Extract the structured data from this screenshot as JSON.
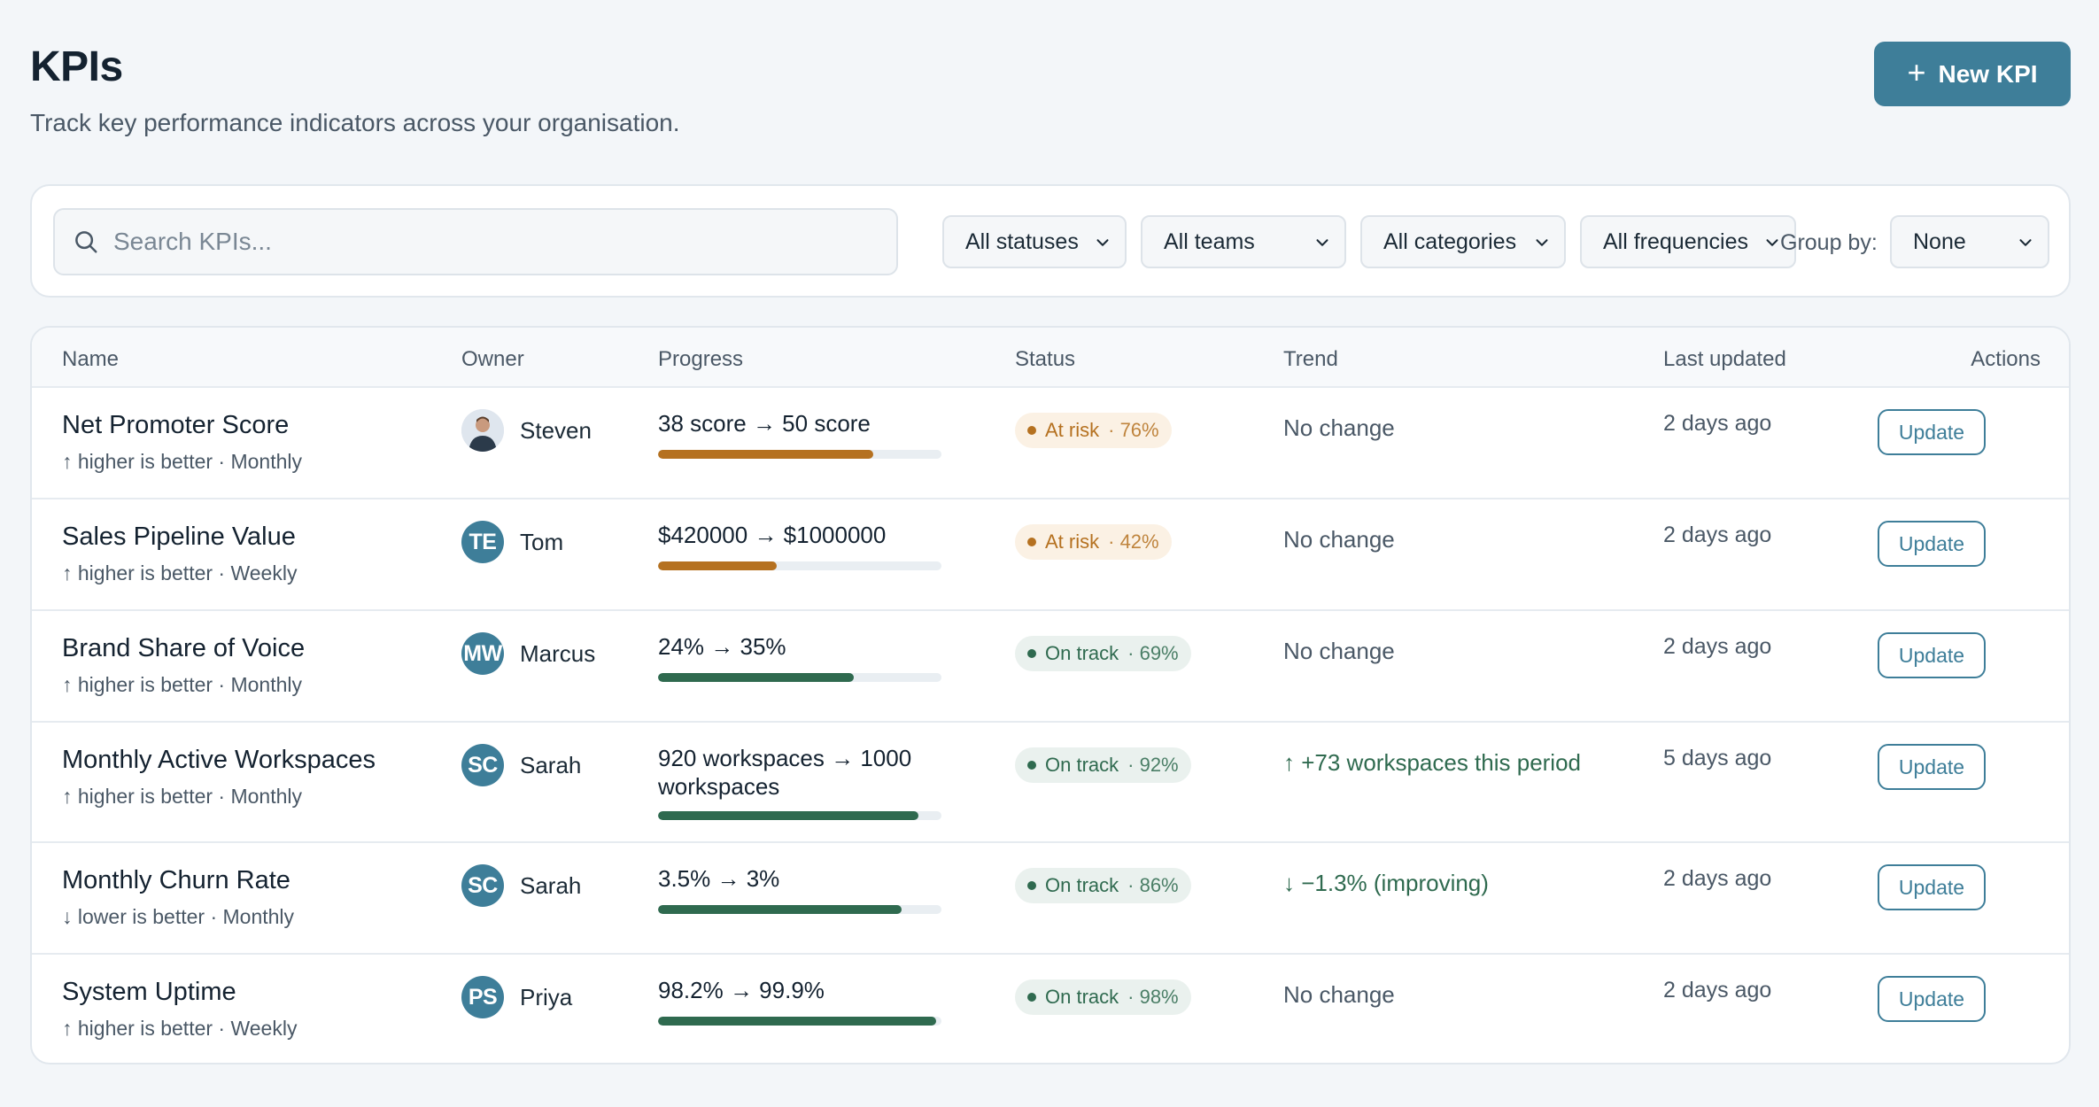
{
  "header": {
    "title": "KPIs",
    "subtitle": "Track key performance indicators across your organisation.",
    "new_button_label": "New KPI"
  },
  "filters": {
    "search_placeholder": "Search KPIs...",
    "status": "All statuses",
    "team": "All teams",
    "category": "All categories",
    "frequency": "All frequencies",
    "group_by_label": "Group by:",
    "group_by": "None"
  },
  "table": {
    "columns": [
      "Name",
      "Owner",
      "Progress",
      "Status",
      "Trend",
      "Last updated",
      "Actions"
    ],
    "rows": [
      {
        "name": "Net Promoter Score",
        "meta": "↑ higher is better · Monthly",
        "owner": "Steven",
        "avatar": "",
        "avatar_photo": true,
        "progress": "38 score → 50 score",
        "progress_fraction": 0.76,
        "status": "At risk",
        "status_pct": "· 76%",
        "status_type": "risk",
        "trend": "No change",
        "trend_type": "none",
        "updated": "2 days ago",
        "action": "Update"
      },
      {
        "name": "Sales Pipeline Value",
        "meta": "↑ higher is better · Weekly",
        "owner": "Tom",
        "avatar": "TE",
        "avatar_photo": false,
        "progress": "$420000 → $1000000",
        "progress_fraction": 0.42,
        "status": "At risk",
        "status_pct": "· 42%",
        "status_type": "risk",
        "trend": "No change",
        "trend_type": "none",
        "updated": "2 days ago",
        "action": "Update"
      },
      {
        "name": "Brand Share of Voice",
        "meta": "↑ higher is better · Monthly",
        "owner": "Marcus",
        "avatar": "MW",
        "avatar_photo": false,
        "progress": "24% → 35%",
        "progress_fraction": 0.69,
        "status": "On track",
        "status_pct": "· 69%",
        "status_type": "ok",
        "trend": "No change",
        "trend_type": "none",
        "updated": "2 days ago",
        "action": "Update"
      },
      {
        "name": "Monthly Active Workspaces",
        "meta": "↑ higher is better · Monthly",
        "owner": "Sarah",
        "avatar": "SC",
        "avatar_photo": false,
        "progress": "920 workspaces → 1000 workspaces",
        "progress_fraction": 0.92,
        "status": "On track",
        "status_pct": "· 92%",
        "status_type": "ok",
        "trend": "↑ +73 workspaces this period",
        "trend_type": "up",
        "updated": "5 days ago",
        "action": "Update"
      },
      {
        "name": "Monthly Churn Rate",
        "meta": "↓ lower is better · Monthly",
        "owner": "Sarah",
        "avatar": "SC",
        "avatar_photo": false,
        "progress": "3.5% → 3%",
        "progress_fraction": 0.86,
        "status": "On track",
        "status_pct": "· 86%",
        "status_type": "ok",
        "trend": "↓ −1.3% (improving)",
        "trend_type": "down",
        "updated": "2 days ago",
        "action": "Update"
      },
      {
        "name": "System Uptime",
        "meta": "↑ higher is better · Weekly",
        "owner": "Priya",
        "avatar": "PS",
        "avatar_photo": false,
        "progress": "98.2% → 99.9%",
        "progress_fraction": 0.98,
        "status": "On track",
        "status_pct": "· 98%",
        "status_type": "ok",
        "trend": "No change",
        "trend_type": "none",
        "updated": "2 days ago",
        "action": "Update"
      }
    ]
  },
  "colors": {
    "accent": "#3e7e99",
    "at_risk": "#b57120",
    "on_track": "#2f6a4f"
  },
  "icons": {
    "new": "plus-icon",
    "search": "search-icon",
    "select": "chevron-down-icon"
  }
}
